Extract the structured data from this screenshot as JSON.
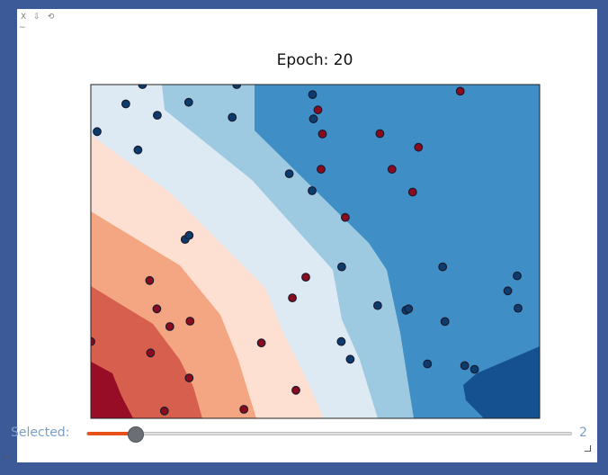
{
  "toolbar": {
    "buttons": [
      {
        "label": "X",
        "icon": "close-icon"
      },
      {
        "label": "⇩",
        "icon": "download-icon"
      },
      {
        "label": "⟲",
        "icon": "reset-icon"
      }
    ],
    "tilde": "~"
  },
  "plot": {
    "title": "Epoch: 20"
  },
  "slider": {
    "label": "Selected:",
    "value": "2",
    "min": 0,
    "max": 20,
    "current": 2,
    "fill_color": "#e8501a"
  },
  "chart_data": {
    "type": "scatter",
    "title": "Epoch: 20",
    "xlabel": "",
    "ylabel": "",
    "xlim": [
      0,
      1
    ],
    "ylim": [
      0,
      1
    ],
    "axes_ticks": "none",
    "background": "contourf decision regions, RdBu colormap",
    "region_colors": [
      "#970d26",
      "#d6604d",
      "#f4a582",
      "#fde0d1",
      "#ddeaf3",
      "#9ecae1",
      "#3f8ec5",
      "#155191"
    ],
    "series": [
      {
        "color": "#8b0a1e",
        "edge": "#1a1a2e",
        "points": [
          [
            0.823,
            0.98
          ],
          [
            0.506,
            0.924
          ],
          [
            0.516,
            0.852
          ],
          [
            0.644,
            0.853
          ],
          [
            0.73,
            0.812
          ],
          [
            0.671,
            0.746
          ],
          [
            0.513,
            0.746
          ],
          [
            0.717,
            0.678
          ],
          [
            0.567,
            0.602
          ],
          [
            0.479,
            0.423
          ],
          [
            0.449,
            0.361
          ],
          [
            0.131,
            0.413
          ],
          [
            0.147,
            0.328
          ],
          [
            0.176,
            0.275
          ],
          [
            0.221,
            0.291
          ],
          [
            0.0,
            0.23
          ],
          [
            0.133,
            0.196
          ],
          [
            0.219,
            0.121
          ],
          [
            0.38,
            0.226
          ],
          [
            0.457,
            0.084
          ],
          [
            0.341,
            0.027
          ],
          [
            0.164,
            0.022
          ]
        ]
      },
      {
        "color": "#0b3c6d",
        "edge": "#1a1a2e",
        "points": [
          [
            0.115,
            1.0
          ],
          [
            0.325,
            1.0
          ],
          [
            0.078,
            0.942
          ],
          [
            0.218,
            0.947
          ],
          [
            0.148,
            0.908
          ],
          [
            0.315,
            0.902
          ],
          [
            0.494,
            0.97
          ],
          [
            0.496,
            0.897
          ],
          [
            0.014,
            0.859
          ],
          [
            0.105,
            0.804
          ],
          [
            0.442,
            0.733
          ],
          [
            0.493,
            0.682
          ],
          [
            0.21,
            0.536
          ],
          [
            0.219,
            0.548
          ],
          [
            0.559,
            0.454
          ],
          [
            0.784,
            0.454
          ],
          [
            0.95,
            0.427
          ],
          [
            0.929,
            0.382
          ],
          [
            0.952,
            0.33
          ],
          [
            0.639,
            0.338
          ],
          [
            0.702,
            0.324
          ],
          [
            0.708,
            0.328
          ],
          [
            0.789,
            0.29
          ],
          [
            0.558,
            0.23
          ],
          [
            0.578,
            0.177
          ],
          [
            0.75,
            0.163
          ],
          [
            0.833,
            0.158
          ],
          [
            0.855,
            0.147
          ]
        ]
      }
    ]
  }
}
